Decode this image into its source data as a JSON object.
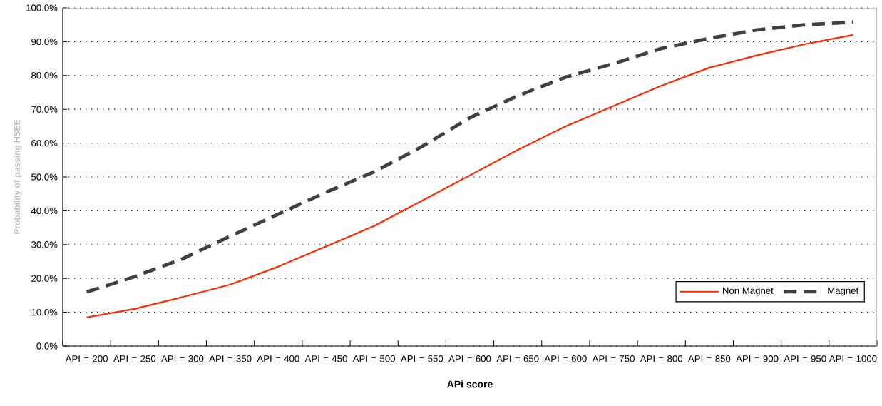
{
  "chart_data": {
    "type": "line",
    "xlabel": "APi   score",
    "ylabel": "Probability of passing HSEE",
    "categories": [
      "API = 200",
      "API = 250",
      "API = 300",
      "API = 350",
      "API = 400",
      "API = 450",
      "API = 500",
      "API = 550",
      "API = 600",
      "API = 650",
      "API = 600",
      "API = 750",
      "API = 800",
      "API = 850",
      "API = 900",
      "API = 950",
      "API = 1000"
    ],
    "series": [
      {
        "name": "Non Magnet",
        "color": "#ff2a00",
        "line_style": "solid",
        "values": [
          8.5,
          11,
          14.5,
          18.2,
          23.5,
          29.5,
          35.5,
          43,
          50.5,
          58,
          65,
          71,
          77,
          82.3,
          86,
          89.3,
          92
        ]
      },
      {
        "name": "Magnet",
        "color": "#404040",
        "line_style": "dashed",
        "values": [
          16,
          20.5,
          25.8,
          32.5,
          39,
          45.5,
          51.5,
          59,
          67.5,
          74,
          79.5,
          83.5,
          88,
          91,
          93.5,
          95,
          95.8
        ]
      }
    ],
    "ylim": [
      0,
      100
    ],
    "yticks": [
      {
        "value": 0,
        "label": "0.0%"
      },
      {
        "value": 10,
        "label": "10.0%"
      },
      {
        "value": 20,
        "label": "20.0%"
      },
      {
        "value": 30,
        "label": "30.0%"
      },
      {
        "value": 40,
        "label": "40.0%"
      },
      {
        "value": 50,
        "label": "50.0%"
      },
      {
        "value": 60,
        "label": "60.0%"
      },
      {
        "value": 70,
        "label": "70.0%"
      },
      {
        "value": 80,
        "label": "80.0%"
      },
      {
        "value": 90,
        "label": "90.0%"
      },
      {
        "value": 100,
        "label": "100.0%"
      }
    ],
    "grid": "y",
    "legend": "bottom right",
    "marker": "none"
  }
}
